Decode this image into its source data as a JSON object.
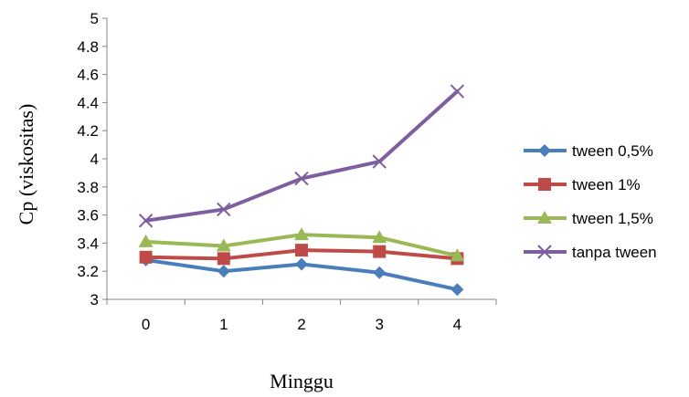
{
  "chart_data": {
    "type": "line",
    "xlabel": "Minggu",
    "ylabel": "Cp (viskositas)",
    "x": [
      "0",
      "1",
      "2",
      "3",
      "4"
    ],
    "ylim": [
      3,
      5
    ],
    "yticks": [
      "3",
      "3.2",
      "3.4",
      "3.6",
      "3.8",
      "4",
      "4.2",
      "4.4",
      "4.6",
      "4.8",
      "5"
    ],
    "grid": false,
    "legend_position": "right",
    "series": [
      {
        "name": "tween 0,5%",
        "values": [
          3.28,
          3.2,
          3.25,
          3.19,
          3.07
        ],
        "color": "#4a7ebb",
        "marker": "diamond"
      },
      {
        "name": "tween 1%",
        "values": [
          3.3,
          3.29,
          3.35,
          3.34,
          3.29
        ],
        "color": "#be4b48",
        "marker": "square"
      },
      {
        "name": "tween  1,5%",
        "values": [
          3.41,
          3.38,
          3.46,
          3.44,
          3.31
        ],
        "color": "#98b954",
        "marker": "triangle"
      },
      {
        "name": "tanpa tween",
        "values": [
          3.56,
          3.64,
          3.86,
          3.98,
          4.48
        ],
        "color": "#7d5fa0",
        "marker": "x"
      }
    ]
  }
}
